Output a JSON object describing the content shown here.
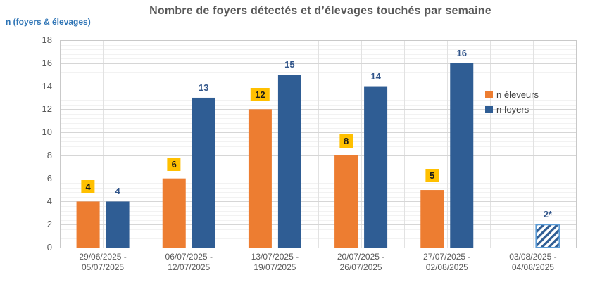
{
  "chart_data": {
    "type": "bar",
    "title": "Nombre de foyers détectés et d’élevages touchés par semaine",
    "ylabel": "n (foyers & élevages)",
    "xlabel": "",
    "categories": [
      [
        "29/06/2025 -",
        "05/07/2025"
      ],
      [
        "06/07/2025 -",
        "12/07/2025"
      ],
      [
        "13/07/2025 -",
        "19/07/2025"
      ],
      [
        "20/07/2025 -",
        "26/07/2025"
      ],
      [
        "27/07/2025 -",
        "02/08/2025"
      ],
      [
        "03/08/2025 -",
        "04/08/2025"
      ]
    ],
    "series": [
      {
        "name": "n éleveurs",
        "color": "#ED7D31",
        "values": [
          4,
          6,
          12,
          8,
          5,
          null
        ],
        "data_labels": [
          "4",
          "6",
          "12",
          "8",
          "5",
          ""
        ],
        "label_style": "black-on-yellow"
      },
      {
        "name": "n foyers",
        "color": "#2F5D94",
        "values": [
          4,
          13,
          15,
          14,
          16,
          2
        ],
        "data_labels": [
          "4",
          "13",
          "15",
          "14",
          "16",
          "2*"
        ],
        "hatched_points": [
          false,
          false,
          false,
          false,
          false,
          true
        ]
      }
    ],
    "ylim": [
      0,
      18
    ],
    "y_major_unit": 2,
    "y_minor_unit": 0.4,
    "y_ticks": [
      "0",
      "2",
      "4",
      "6",
      "8",
      "10",
      "12",
      "14",
      "16",
      "18"
    ],
    "grid": true,
    "legend_position": "right-overlay"
  },
  "colors": {
    "orange": "#ED7D31",
    "blue": "#2F5D94",
    "label_highlight": "#FFC000",
    "blue_label_text": "#31558A",
    "axis_text": "#595959",
    "title_text": "#595959",
    "y_axis_title_text": "#2E74B5",
    "legend_text": "#404040",
    "gridline_major": "#D6D6D6",
    "gridline_minor": "#F2F2F2",
    "gridline_vertical": "#E2E2E2",
    "plot_border": "#C9C9C9",
    "axis_line": "#BFBFBF",
    "hatch_border": "#5B9BD5",
    "hatch_stripe": "#2F5D94",
    "hatch_background": "#FFFFFF"
  }
}
